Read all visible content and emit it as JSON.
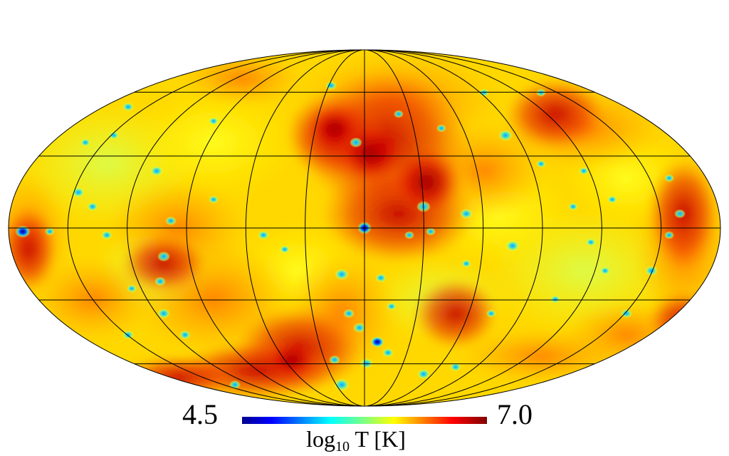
{
  "map": {
    "projection": "mollweide",
    "graticule": {
      "meridian_step_deg": 30,
      "parallel_step_deg": 30
    },
    "colormap": "jet",
    "colors": {
      "cold": "#00008f",
      "mid_cyan": "#40e0d0",
      "mid_yellow": "#ffff00",
      "warm_orange": "#ff8c00",
      "hot": "#a80000",
      "grid_line": "#000000"
    },
    "centre_feature": {
      "name": "galactic-centre-cold-spot",
      "lon_deg": 0,
      "lat_deg": 0,
      "log10_T": 4.5
    }
  },
  "colorbar": {
    "min_label": "4.5",
    "max_label": "7.0",
    "title_prefix": "log",
    "title_subscript": "10",
    "title_suffix": " T [K]"
  }
}
